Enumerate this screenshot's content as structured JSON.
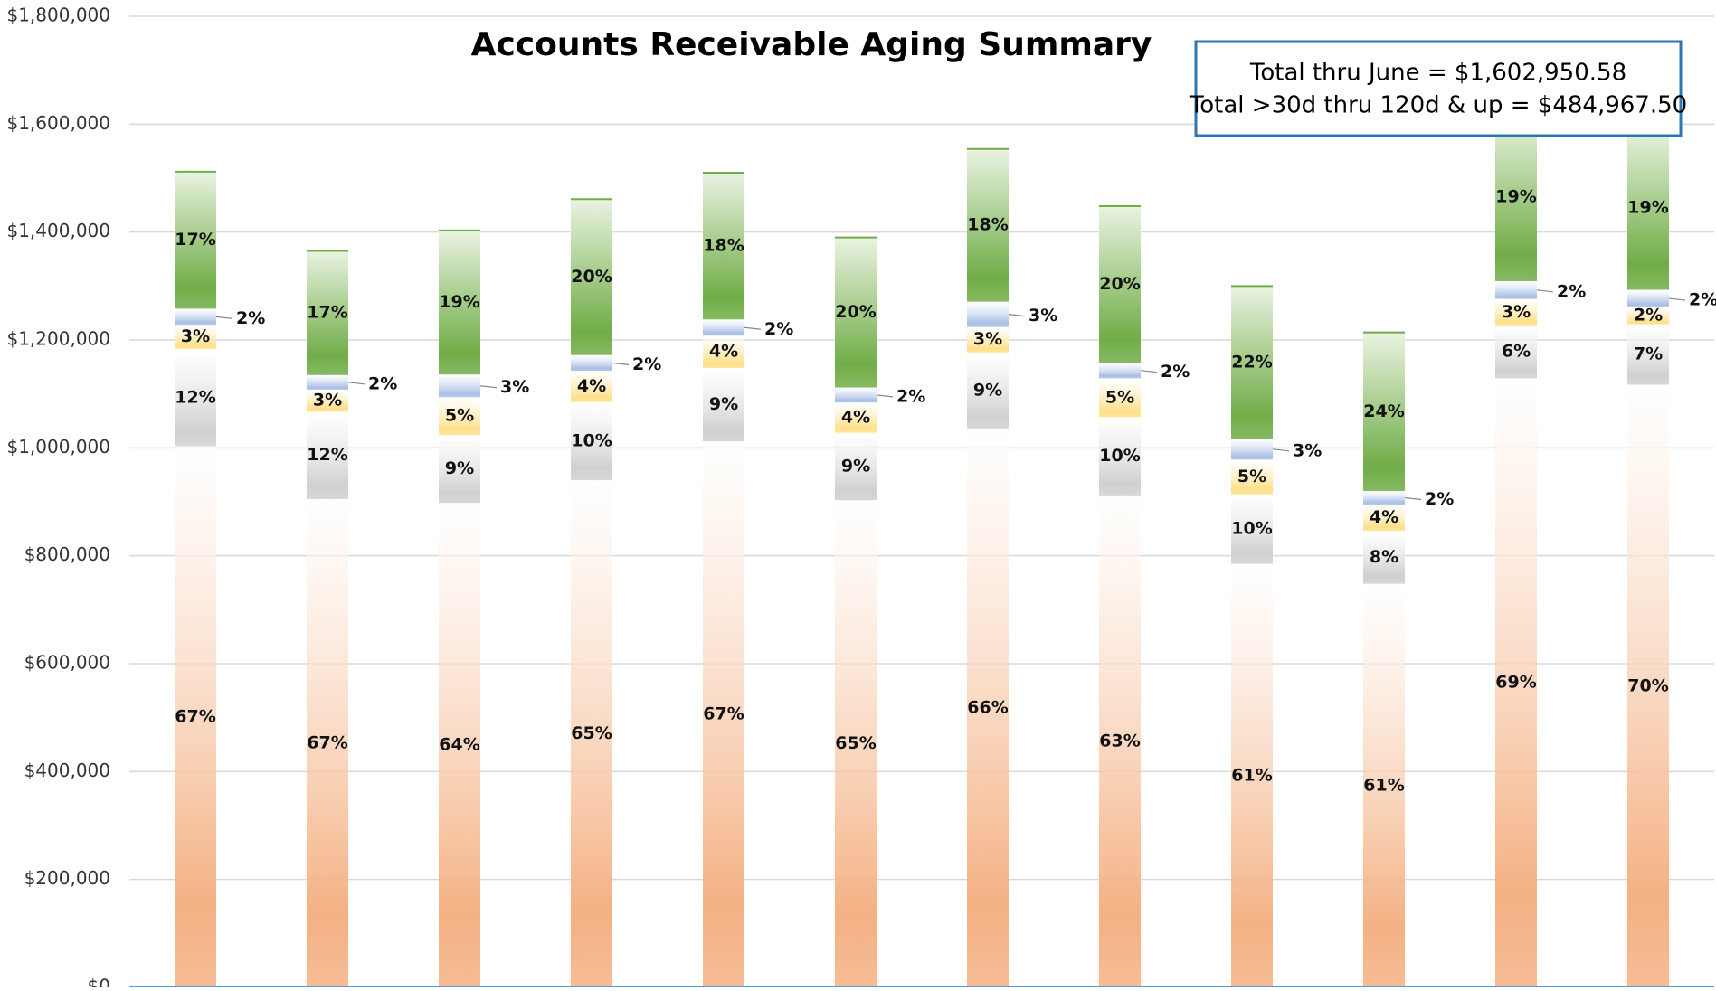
{
  "chart_data": {
    "type": "stacked_bar",
    "title": "Accounts Receivable Aging Summary",
    "annotation": [
      "Total thru June = $1,602,950.58",
      "Total >30d thru 120d & up = $484,967.50"
    ],
    "categories": [
      null,
      null,
      null,
      null,
      null,
      null,
      null,
      null,
      null,
      null,
      null,
      null
    ],
    "ylim": [
      0,
      1800000
    ],
    "yticks": [
      {
        "value": 0,
        "label": "$0"
      },
      {
        "value": 200000,
        "label": "$200,000"
      },
      {
        "value": 400000,
        "label": "$400,000"
      },
      {
        "value": 600000,
        "label": "$600,000"
      },
      {
        "value": 800000,
        "label": "$800,000"
      },
      {
        "value": 1000000,
        "label": "$1,000,000"
      },
      {
        "value": 1200000,
        "label": "$1,200,000"
      },
      {
        "value": 1400000,
        "label": "$1,400,000"
      },
      {
        "value": 1600000,
        "label": "$1,600,000"
      },
      {
        "value": 1800000,
        "label": "$1,800,000"
      }
    ],
    "grid": true,
    "series": [
      {
        "color": "#f4b183",
        "values": [
          1003000,
          905000,
          898000,
          940000,
          1012000,
          903000,
          1036000,
          912000,
          785000,
          748000,
          1129000,
          1117000
        ],
        "percent_labels": [
          "67%",
          "67%",
          "64%",
          "65%",
          "67%",
          "65%",
          "66%",
          "63%",
          "61%",
          "61%",
          "69%",
          "70%"
        ]
      },
      {
        "color": "#d0d0d0",
        "values": [
          180000,
          162000,
          126000,
          145000,
          136000,
          125000,
          141000,
          145000,
          129000,
          98000,
          98000,
          112000
        ],
        "percent_labels": [
          "12%",
          "12%",
          "9%",
          "10%",
          "9%",
          "9%",
          "9%",
          "10%",
          "10%",
          "8%",
          "6%",
          "7%"
        ]
      },
      {
        "color": "#ffe08a",
        "values": [
          45000,
          41000,
          70000,
          58000,
          60000,
          56000,
          47000,
          72000,
          64000,
          49000,
          49000,
          32000
        ],
        "percent_labels": [
          "3%",
          "3%",
          "5%",
          "4%",
          "4%",
          "4%",
          "3%",
          "5%",
          "5%",
          "4%",
          "3%",
          "2%"
        ]
      },
      {
        "color": "#a9bfe6",
        "values": [
          30000,
          27000,
          42000,
          29000,
          30000,
          28000,
          47000,
          29000,
          39000,
          25000,
          33000,
          32000
        ],
        "percent_labels": [
          "2%",
          "2%",
          "3%",
          "2%",
          "2%",
          "2%",
          "3%",
          "2%",
          "3%",
          "2%",
          "2%",
          "2%"
        ]
      },
      {
        "color": "#70ad47",
        "values": [
          254000,
          230000,
          267000,
          289000,
          272000,
          278000,
          283000,
          290000,
          283000,
          294000,
          311000,
          303000
        ],
        "percent_labels": [
          "17%",
          "17%",
          "19%",
          "20%",
          "18%",
          "20%",
          "18%",
          "20%",
          "22%",
          "24%",
          "19%",
          "19%"
        ]
      }
    ]
  }
}
